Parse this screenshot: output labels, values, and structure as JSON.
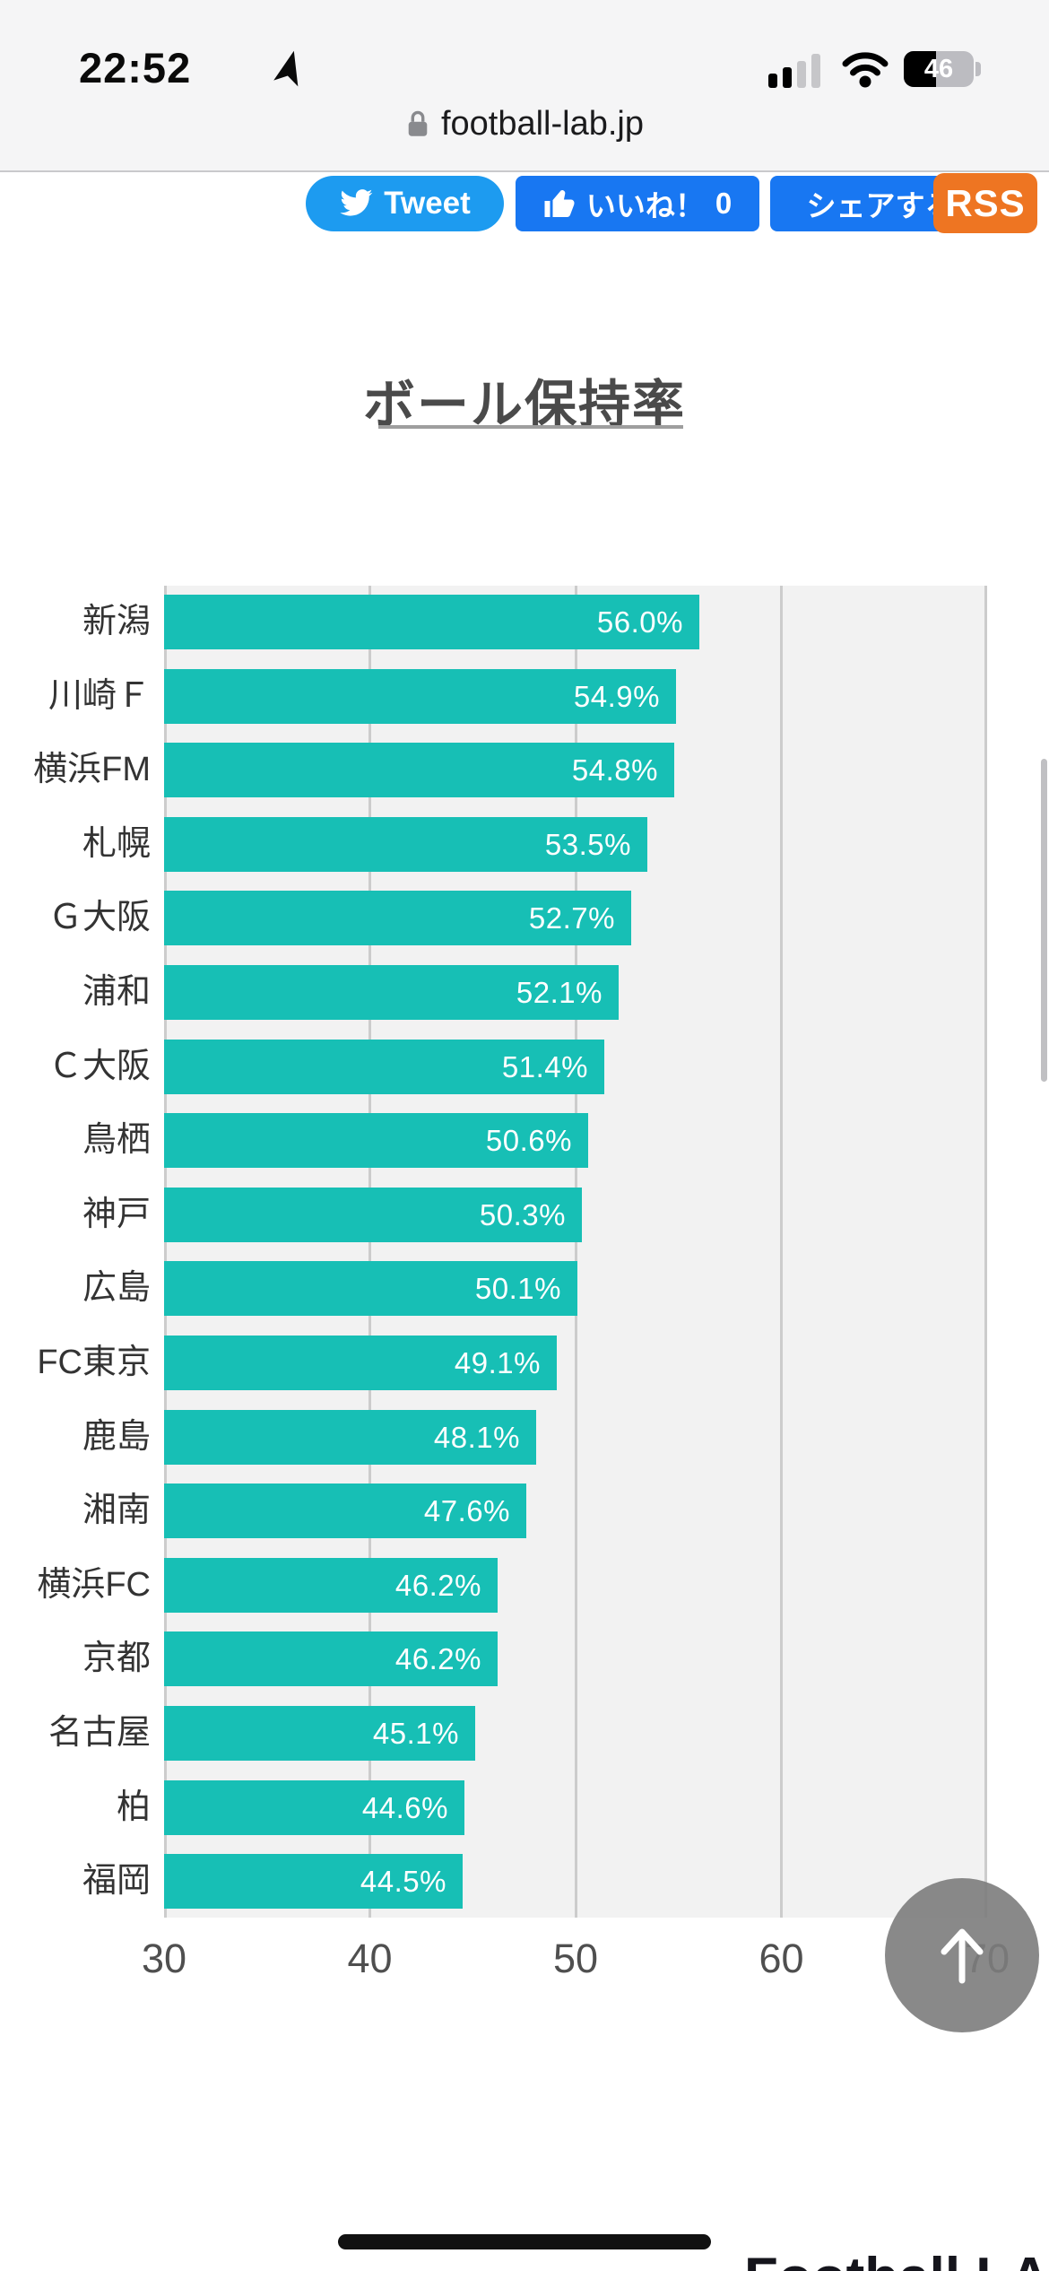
{
  "status_bar": {
    "time": "22:52",
    "battery_percent": "46"
  },
  "url_bar": {
    "domain": "football-lab.jp"
  },
  "share_bar": {
    "tweet_label": "Tweet",
    "like_label": "いいね！",
    "like_count": "0",
    "share_label": "シェアする",
    "rss_label": "RSS"
  },
  "chart_data": {
    "type": "bar",
    "orientation": "horizontal",
    "title": "ボール保持率",
    "categories": [
      "新潟",
      "川崎Ｆ",
      "横浜FM",
      "札幌",
      "Ｇ大阪",
      "浦和",
      "Ｃ大阪",
      "鳥栖",
      "神戸",
      "広島",
      "FC東京",
      "鹿島",
      "湘南",
      "横浜FC",
      "京都",
      "名古屋",
      "柏",
      "福岡"
    ],
    "values": [
      56.0,
      54.9,
      54.8,
      53.5,
      52.7,
      52.1,
      51.4,
      50.6,
      50.3,
      50.1,
      49.1,
      48.1,
      47.6,
      46.2,
      46.2,
      45.1,
      44.6,
      44.5
    ],
    "value_labels": [
      "56.0%",
      "54.9%",
      "54.8%",
      "53.5%",
      "52.7%",
      "52.1%",
      "51.4%",
      "50.6%",
      "50.3%",
      "50.1%",
      "49.1%",
      "48.1%",
      "47.6%",
      "46.2%",
      "46.2%",
      "45.1%",
      "44.6%",
      "44.5%"
    ],
    "xlabel": "",
    "ylabel": "",
    "xlim": [
      30,
      70
    ],
    "x_ticks": [
      "30",
      "40",
      "50",
      "60",
      "70"
    ],
    "grid": true,
    "legend": "none",
    "bar_color": "#17BFB5",
    "plot_bg": "#F2F2F2",
    "grid_color": "#CCCCCC"
  },
  "scroll_top_button": {
    "icon": "up-arrow"
  },
  "footer": {
    "partial_logo_text": "Football LAB"
  }
}
